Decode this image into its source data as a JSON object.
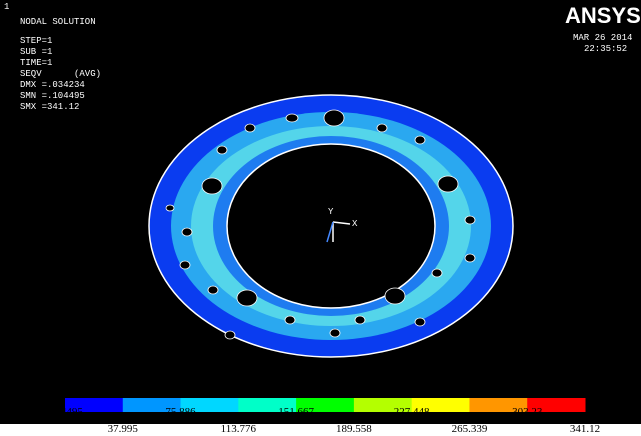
{
  "window": {
    "number": "1",
    "lines": [
      "NODAL SOLUTION",
      "STEP=1",
      "SUB =1",
      "TIME=1",
      "SEQV      (AVG)",
      "DMX =.034234",
      "SMN =.104495",
      "SMX =341.12"
    ],
    "logo": "ANSYS",
    "date": "MAR 26 2014",
    "time": "22:35:52",
    "triad": {
      "y": "Y",
      "x": "X"
    }
  },
  "legend": {
    "colors": [
      "#0000ff",
      "#0096ff",
      "#00d7ff",
      "#00ffc8",
      "#00ff00",
      "#b4ff00",
      "#ffff00",
      "#ff9600",
      "#ff0000"
    ],
    "labels": [
      ".104495",
      "37.995",
      "75.886",
      "113.776",
      "151.667",
      "189.558",
      "227.448",
      "265.339",
      "303.23",
      "341.12"
    ]
  }
}
